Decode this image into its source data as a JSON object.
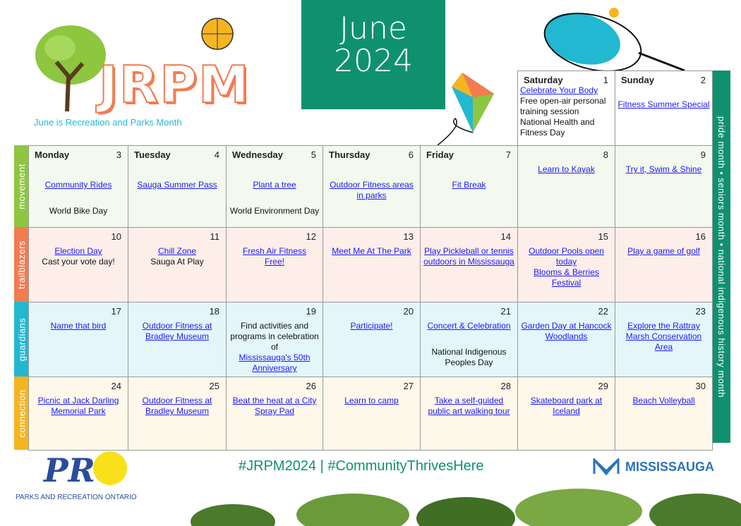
{
  "header": {
    "logo_text": "JRPM",
    "tagline": "June is Recreation and Parks Month",
    "month": "June",
    "year": "2024"
  },
  "categories": [
    {
      "label": "movement",
      "color": "#8dc63f",
      "bg": "#f3f9ee"
    },
    {
      "label": "trailblazers",
      "color": "#f47b50",
      "bg": "#fdeeea"
    },
    {
      "label": "guardians",
      "color": "#22b8d1",
      "bg": "#e4f6fa"
    },
    {
      "label": "connection",
      "color": "#f5b51f",
      "bg": "#fdf8ea"
    }
  ],
  "side_band": "pride month  •  seniors month  •  national indigenous history month",
  "cells": [
    {
      "row": -1,
      "col": 5,
      "weekday": "Saturday",
      "day": "1",
      "items": [
        {
          "t": "Celebrate Your Body",
          "link": true
        },
        {
          "t": "Free open-air personal training session"
        },
        {
          "t": "National Health and Fitness Day"
        }
      ]
    },
    {
      "row": -1,
      "col": 6,
      "weekday": "Sunday",
      "day": "2",
      "items": [
        {
          "t": "Fitness Summer Special",
          "link": true
        }
      ]
    },
    {
      "row": 0,
      "col": 0,
      "weekday": "Monday",
      "day": "3",
      "items": [
        {
          "t": "Community Rides",
          "link": true
        },
        {
          "t": "World Bike Day"
        }
      ]
    },
    {
      "row": 0,
      "col": 1,
      "weekday": "Tuesday",
      "day": "4",
      "items": [
        {
          "t": "Sauga Summer Pass",
          "link": true
        }
      ]
    },
    {
      "row": 0,
      "col": 2,
      "weekday": "Wednesday",
      "day": "5",
      "items": [
        {
          "t": "Plant a tree",
          "link": true
        },
        {
          "t": "World Environment Day"
        }
      ]
    },
    {
      "row": 0,
      "col": 3,
      "weekday": "Thursday",
      "day": "6",
      "items": [
        {
          "t": "Outdoor Fitness areas in parks",
          "link": true
        }
      ]
    },
    {
      "row": 0,
      "col": 4,
      "weekday": "Friday",
      "day": "7",
      "items": [
        {
          "t": "Fit Break",
          "link": true
        }
      ]
    },
    {
      "row": 0,
      "col": 5,
      "day": "8",
      "items": [
        {
          "t": "Learn to Kayak",
          "link": true
        }
      ]
    },
    {
      "row": 0,
      "col": 6,
      "day": "9",
      "items": [
        {
          "t": "Try it, Swim & Shine",
          "link": true
        }
      ]
    },
    {
      "row": 1,
      "col": 0,
      "day": "10",
      "items": [
        {
          "t": "Election Day",
          "link": true
        },
        {
          "t": "Cast your vote day!"
        }
      ]
    },
    {
      "row": 1,
      "col": 1,
      "day": "11",
      "items": [
        {
          "t": "Chill Zone",
          "link": true
        },
        {
          "t": "Sauga At Play"
        }
      ]
    },
    {
      "row": 1,
      "col": 2,
      "day": "12",
      "items": [
        {
          "t": "Fresh Air Fitness",
          "link": true
        },
        {
          "t": "Free!",
          "link": true
        }
      ]
    },
    {
      "row": 1,
      "col": 3,
      "day": "13",
      "items": [
        {
          "t": "Meet Me At The Park",
          "link": true
        }
      ]
    },
    {
      "row": 1,
      "col": 4,
      "day": "14",
      "items": [
        {
          "t": "Play Pickleball or tennis outdoors in Mississauga",
          "link": true
        }
      ]
    },
    {
      "row": 1,
      "col": 5,
      "day": "15",
      "items": [
        {
          "t": "Outdoor Pools open today",
          "link": true
        },
        {
          "t": "Blooms & Berries Festival",
          "link": true
        }
      ]
    },
    {
      "row": 1,
      "col": 6,
      "day": "16",
      "items": [
        {
          "t": "Play a game of golf",
          "link": true
        }
      ]
    },
    {
      "row": 2,
      "col": 0,
      "day": "17",
      "items": [
        {
          "t": "Name that bird",
          "link": true
        }
      ]
    },
    {
      "row": 2,
      "col": 1,
      "day": "18",
      "items": [
        {
          "t": "Outdoor Fitness at Bradley Museum",
          "link": true
        }
      ]
    },
    {
      "row": 2,
      "col": 2,
      "day": "19",
      "items": [
        {
          "t": "Find activities and programs in celebration of"
        },
        {
          "t": "Mississauga's 50th Anniversary",
          "link": true
        }
      ]
    },
    {
      "row": 2,
      "col": 3,
      "day": "20",
      "items": [
        {
          "t": "Participate!",
          "link": true
        }
      ]
    },
    {
      "row": 2,
      "col": 4,
      "day": "21",
      "items": [
        {
          "t": "Concert & Celebration",
          "link": true
        },
        {
          "t": "National Indigenous Peoples Day"
        }
      ]
    },
    {
      "row": 2,
      "col": 5,
      "day": "22",
      "items": [
        {
          "t": "Garden Day at Hancock Woodlands",
          "link": true
        }
      ]
    },
    {
      "row": 2,
      "col": 6,
      "day": "23",
      "items": [
        {
          "t": "Explore the Rattray Marsh Conservation Area",
          "link": true
        }
      ]
    },
    {
      "row": 3,
      "col": 0,
      "day": "24",
      "items": [
        {
          "t": "Picnic at Jack Darling Memorial Park",
          "link": true
        }
      ]
    },
    {
      "row": 3,
      "col": 1,
      "day": "25",
      "items": [
        {
          "t": "Outdoor Fitness at Bradley Museum",
          "link": true
        }
      ]
    },
    {
      "row": 3,
      "col": 2,
      "day": "26",
      "items": [
        {
          "t": "Beat the heat at a City Spray Pad",
          "link": true
        }
      ]
    },
    {
      "row": 3,
      "col": 3,
      "day": "27",
      "items": [
        {
          "t": "Learn to camp",
          "link": true
        }
      ]
    },
    {
      "row": 3,
      "col": 4,
      "day": "28",
      "items": [
        {
          "t": "Take a self-guided public art walking tour",
          "link": true
        }
      ]
    },
    {
      "row": 3,
      "col": 5,
      "day": "29",
      "items": [
        {
          "t": "Skateboard park at Iceland",
          "link": true
        }
      ]
    },
    {
      "row": 3,
      "col": 6,
      "day": "30",
      "items": [
        {
          "t": "Beach Volleyball",
          "link": true
        }
      ]
    }
  ],
  "footer": {
    "hashtags": "#JRPM2024  |  #CommunityThrivesHere",
    "pro_logo": "PR",
    "pro_name": "PARKS AND RECREATION ONTARIO",
    "city": "MISSISSAUGA"
  },
  "colors": {
    "brand_green": "#0f9170",
    "link": "#1a1aff",
    "orange": "#f47b50"
  }
}
